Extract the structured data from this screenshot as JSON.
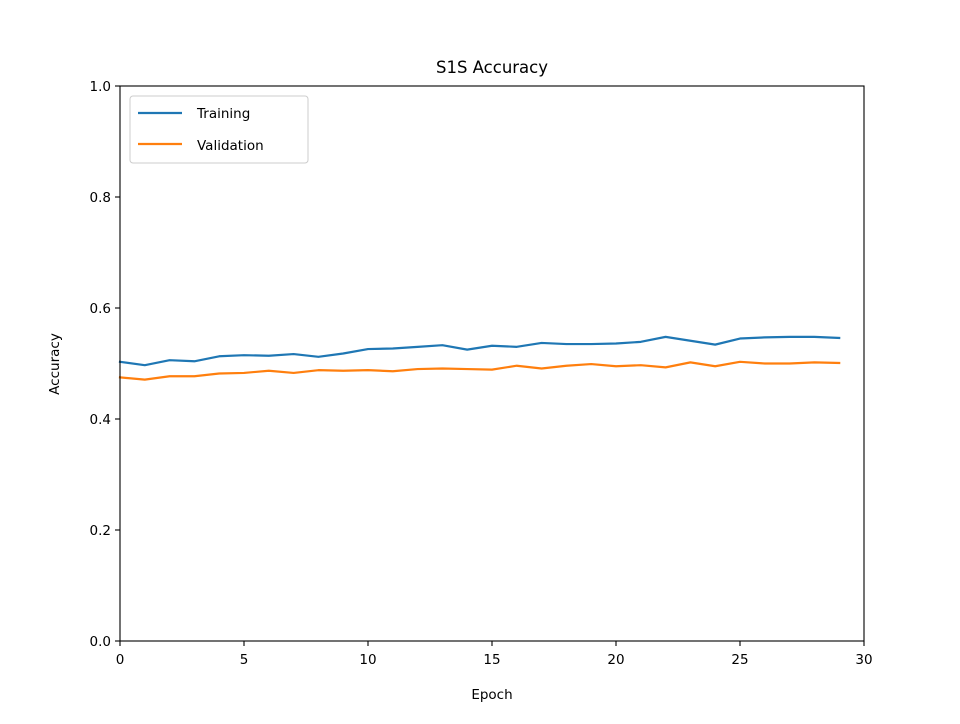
{
  "chart_data": {
    "type": "line",
    "title": "S1S Accuracy",
    "xlabel": "Epoch",
    "ylabel": "Accuracy",
    "xlim": [
      0,
      30
    ],
    "ylim": [
      0,
      1
    ],
    "xticks": [
      "0",
      "5",
      "10",
      "15",
      "20",
      "25",
      "30"
    ],
    "yticks": [
      "0.0",
      "0.2",
      "0.4",
      "0.6",
      "0.8",
      "1.0"
    ],
    "grid": false,
    "legend_position": "top-left",
    "x": [
      0,
      1,
      2,
      3,
      4,
      5,
      6,
      7,
      8,
      9,
      10,
      11,
      12,
      13,
      14,
      15,
      16,
      17,
      18,
      19,
      20,
      21,
      22,
      23,
      24,
      25,
      26,
      27,
      28,
      29
    ],
    "series": [
      {
        "name": "Training",
        "color": "#1f77b4",
        "values": [
          0.503,
          0.497,
          0.506,
          0.504,
          0.513,
          0.515,
          0.514,
          0.517,
          0.512,
          0.518,
          0.526,
          0.527,
          0.53,
          0.533,
          0.525,
          0.532,
          0.53,
          0.537,
          0.535,
          0.535,
          0.536,
          0.539,
          0.548,
          0.541,
          0.534,
          0.545,
          0.547,
          0.548,
          0.548,
          0.546
        ]
      },
      {
        "name": "Validation",
        "color": "#ff7f0e",
        "values": [
          0.475,
          0.471,
          0.477,
          0.477,
          0.482,
          0.483,
          0.487,
          0.483,
          0.488,
          0.487,
          0.488,
          0.486,
          0.49,
          0.491,
          0.49,
          0.489,
          0.496,
          0.491,
          0.496,
          0.499,
          0.495,
          0.497,
          0.493,
          0.502,
          0.495,
          0.503,
          0.5,
          0.5,
          0.502,
          0.501
        ]
      }
    ]
  }
}
